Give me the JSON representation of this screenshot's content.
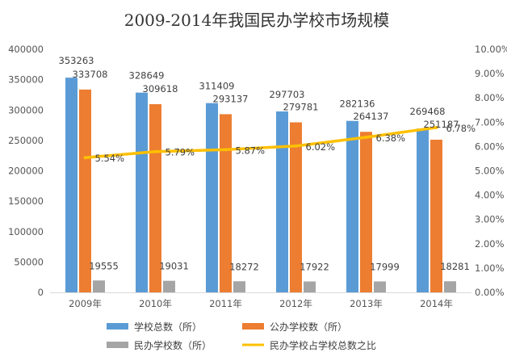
{
  "chart_data": {
    "type": "bar",
    "title": "2009-2014年我国民办学校市场规模",
    "categories": [
      "2009年",
      "2010年",
      "2011年",
      "2012年",
      "2013年",
      "2014年"
    ],
    "y_left": {
      "min": 0,
      "max": 400000,
      "ticks": [
        "0",
        "50000",
        "100000",
        "150000",
        "200000",
        "250000",
        "300000",
        "350000",
        "400000"
      ]
    },
    "y_right": {
      "min": 0,
      "max": 10,
      "ticks": [
        "0.00%",
        "1.00%",
        "2.00%",
        "3.00%",
        "4.00%",
        "5.00%",
        "6.00%",
        "7.00%",
        "8.00%",
        "9.00%",
        "10.00%"
      ]
    },
    "grid": false,
    "legend_position": "bottom",
    "series": [
      {
        "name": "学校总数（所）",
        "kind": "bar",
        "axis": "left",
        "color": "#5B9BD5",
        "values": [
          353263,
          328649,
          311409,
          297703,
          282136,
          269468
        ],
        "labels": [
          "353263",
          "328649",
          "311409",
          "297703",
          "282136",
          "269468"
        ]
      },
      {
        "name": "公办学校数（所）",
        "kind": "bar",
        "axis": "left",
        "color": "#ED7D31",
        "values": [
          333708,
          309618,
          293137,
          279781,
          264137,
          251187
        ],
        "labels": [
          "333708",
          "309618",
          "293137",
          "279781",
          "264137",
          "251187"
        ]
      },
      {
        "name": "民办学校数（所）",
        "kind": "bar",
        "axis": "left",
        "color": "#A5A5A5",
        "values": [
          19555,
          19031,
          18272,
          17922,
          17999,
          18281
        ],
        "labels": [
          "19555",
          "19031",
          "18272",
          "17922",
          "17999",
          "18281"
        ]
      },
      {
        "name": "民办学校占学校总数之比",
        "kind": "line",
        "axis": "right",
        "color": "#FFC000",
        "values": [
          5.54,
          5.79,
          5.87,
          6.02,
          6.38,
          6.78
        ],
        "labels": [
          "5.54%",
          "5.79%",
          "5.87%",
          "6.02%",
          "6.38%",
          "6.78%"
        ]
      }
    ]
  }
}
